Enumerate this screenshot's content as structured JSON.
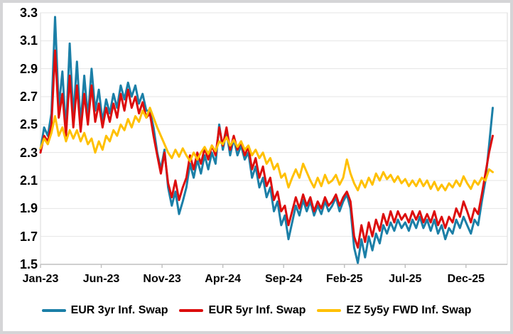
{
  "chart_data": {
    "type": "line",
    "title": "",
    "xlabel": "",
    "ylabel": "",
    "x_unit": "months since Jan-2023 (daily inflation swap rates, %)",
    "x_tick_labels": [
      "Jan-23",
      "Jun-23",
      "Nov-23",
      "Apr-24",
      "Sep-24",
      "Feb-25",
      "Jul-25",
      "Dec-25"
    ],
    "x_tick_positions_months": [
      0,
      5,
      10,
      15,
      20,
      25,
      30,
      35
    ],
    "x_range_months": [
      0,
      38.4
    ],
    "ylim": [
      1.5,
      3.3
    ],
    "y_tick_step": 0.2,
    "y_tick_labels": [
      "1.5",
      "1.7",
      "1.9",
      "2.1",
      "2.3",
      "2.5",
      "2.7",
      "2.9",
      "3.1",
      "3.3"
    ],
    "grid": "horizontal",
    "legend_position": "bottom",
    "colors": {
      "grid": "#e4e4e4",
      "frame": "#d9d9d9",
      "axis": "#bfbfbf",
      "text": "#000000",
      "outer_border": "#d5d5d7",
      "background": "#ffffff"
    },
    "sample_x_start_months": 0,
    "sample_x_step_months": 0.3,
    "series": [
      {
        "name": "EUR 3yr Inf. Swap",
        "color": "#1b7fa7",
        "values": [
          2.32,
          2.48,
          2.42,
          2.58,
          3.27,
          2.62,
          2.88,
          2.45,
          3.08,
          2.55,
          2.95,
          2.5,
          2.85,
          2.55,
          2.9,
          2.6,
          2.75,
          2.52,
          2.68,
          2.58,
          2.72,
          2.62,
          2.78,
          2.68,
          2.8,
          2.7,
          2.78,
          2.65,
          2.72,
          2.6,
          2.6,
          2.48,
          2.3,
          2.18,
          2.32,
          2.05,
          1.92,
          2.02,
          1.86,
          1.95,
          2.05,
          2.22,
          2.12,
          2.25,
          2.15,
          2.28,
          2.18,
          2.3,
          2.22,
          2.5,
          2.32,
          2.45,
          2.28,
          2.4,
          2.28,
          2.35,
          2.25,
          2.3,
          2.12,
          2.2,
          2.05,
          2.12,
          1.98,
          2.05,
          1.88,
          1.95,
          1.78,
          1.85,
          1.68,
          1.8,
          1.92,
          1.85,
          1.96,
          1.88,
          1.95,
          1.85,
          1.92,
          1.86,
          1.95,
          1.88,
          1.92,
          1.98,
          1.88,
          1.95,
          2.0,
          1.9,
          1.62,
          1.51,
          1.68,
          1.55,
          1.7,
          1.6,
          1.72,
          1.65,
          1.78,
          1.72,
          1.8,
          1.74,
          1.82,
          1.76,
          1.8,
          1.74,
          1.82,
          1.76,
          1.84,
          1.76,
          1.82,
          1.74,
          1.82,
          1.72,
          1.78,
          1.68,
          1.76,
          1.72,
          1.82,
          1.76,
          1.84,
          1.78,
          1.72,
          1.82,
          1.78,
          1.95,
          2.1,
          2.35,
          2.62
        ]
      },
      {
        "name": "EUR 5yr Inf. Swap",
        "color": "#dc0d0d",
        "values": [
          2.3,
          2.42,
          2.38,
          2.5,
          3.03,
          2.55,
          2.72,
          2.42,
          2.85,
          2.48,
          2.78,
          2.45,
          2.72,
          2.5,
          2.78,
          2.52,
          2.65,
          2.48,
          2.62,
          2.52,
          2.65,
          2.55,
          2.72,
          2.6,
          2.75,
          2.62,
          2.7,
          2.58,
          2.66,
          2.55,
          2.58,
          2.42,
          2.28,
          2.15,
          2.3,
          2.08,
          1.98,
          2.1,
          1.96,
          2.05,
          2.12,
          2.28,
          2.18,
          2.3,
          2.22,
          2.33,
          2.25,
          2.35,
          2.28,
          2.48,
          2.35,
          2.48,
          2.32,
          2.42,
          2.32,
          2.38,
          2.28,
          2.34,
          2.18,
          2.26,
          2.12,
          2.2,
          2.06,
          2.12,
          1.96,
          2.02,
          1.88,
          1.92,
          1.78,
          1.88,
          1.98,
          1.9,
          2.0,
          1.92,
          1.98,
          1.88,
          1.95,
          1.9,
          1.98,
          1.92,
          1.95,
          2.0,
          1.92,
          1.98,
          2.02,
          1.95,
          1.7,
          1.62,
          1.78,
          1.66,
          1.8,
          1.7,
          1.82,
          1.74,
          1.86,
          1.78,
          1.88,
          1.8,
          1.88,
          1.82,
          1.86,
          1.8,
          1.88,
          1.82,
          1.88,
          1.8,
          1.86,
          1.8,
          1.88,
          1.78,
          1.84,
          1.76,
          1.84,
          1.8,
          1.9,
          1.84,
          1.95,
          1.88,
          1.8,
          1.9,
          1.86,
          2.0,
          2.15,
          2.3,
          2.42
        ]
      },
      {
        "name": "EZ 5y5y FWD Inf. Swap",
        "color": "#ffc000",
        "values": [
          2.33,
          2.4,
          2.36,
          2.44,
          2.56,
          2.42,
          2.48,
          2.38,
          2.46,
          2.4,
          2.46,
          2.38,
          2.44,
          2.36,
          2.4,
          2.3,
          2.38,
          2.32,
          2.42,
          2.38,
          2.46,
          2.42,
          2.5,
          2.46,
          2.54,
          2.48,
          2.56,
          2.52,
          2.6,
          2.55,
          2.62,
          2.55,
          2.48,
          2.42,
          2.36,
          2.3,
          2.26,
          2.32,
          2.27,
          2.33,
          2.28,
          2.24,
          2.3,
          2.25,
          2.3,
          2.34,
          2.29,
          2.35,
          2.31,
          2.38,
          2.36,
          2.41,
          2.35,
          2.39,
          2.34,
          2.38,
          2.32,
          2.35,
          2.28,
          2.32,
          2.26,
          2.3,
          2.22,
          2.26,
          2.18,
          2.22,
          2.12,
          2.15,
          2.05,
          2.12,
          2.18,
          2.12,
          2.22,
          2.16,
          2.1,
          2.05,
          2.12,
          2.06,
          2.14,
          2.08,
          2.1,
          2.14,
          2.07,
          2.12,
          2.25,
          2.15,
          2.08,
          2.03,
          2.1,
          2.05,
          2.12,
          2.07,
          2.15,
          2.1,
          2.16,
          2.11,
          2.14,
          2.09,
          2.13,
          2.08,
          2.11,
          2.06,
          2.1,
          2.06,
          2.11,
          2.06,
          2.1,
          2.04,
          2.09,
          2.03,
          2.07,
          2.03,
          2.08,
          2.05,
          2.1,
          2.06,
          2.13,
          2.08,
          2.04,
          2.1,
          2.07,
          2.12,
          2.1,
          2.18,
          2.16
        ]
      }
    ]
  },
  "legend": {
    "items": [
      {
        "label": "EUR 3yr Inf. Swap",
        "color": "#1b7fa7"
      },
      {
        "label": "EUR 5yr Inf. Swap",
        "color": "#dc0d0d"
      },
      {
        "label": "EZ 5y5y FWD Inf. Swap",
        "color": "#ffc000"
      }
    ]
  }
}
